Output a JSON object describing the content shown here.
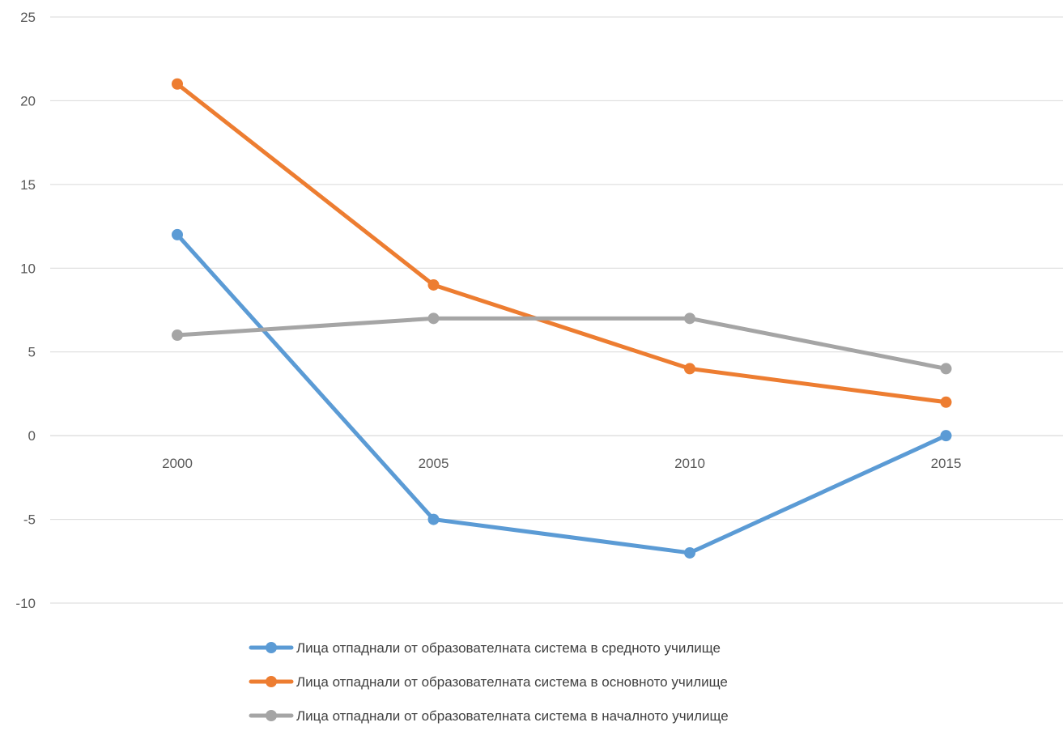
{
  "chart_data": {
    "type": "line",
    "title": "",
    "xlabel": "",
    "ylabel": "",
    "categories": [
      "2000",
      "2005",
      "2010",
      "2015"
    ],
    "ylim": [
      -10,
      25
    ],
    "yticks": [
      25,
      20,
      15,
      10,
      5,
      0,
      -5,
      -10
    ],
    "grid": true,
    "legend_position": "bottom",
    "series": [
      {
        "name": "Лица отпаднали от образователната система в средното училище",
        "color": "#5B9BD5",
        "values": [
          12,
          -5,
          -7,
          0
        ]
      },
      {
        "name": "Лица отпаднали от образователната система в основното училище",
        "color": "#ED7D31",
        "values": [
          21,
          9,
          4,
          2
        ]
      },
      {
        "name": "Лица отпаднали от образователната система в началното училище",
        "color": "#A5A5A5",
        "values": [
          6,
          7,
          7,
          4
        ]
      }
    ]
  }
}
